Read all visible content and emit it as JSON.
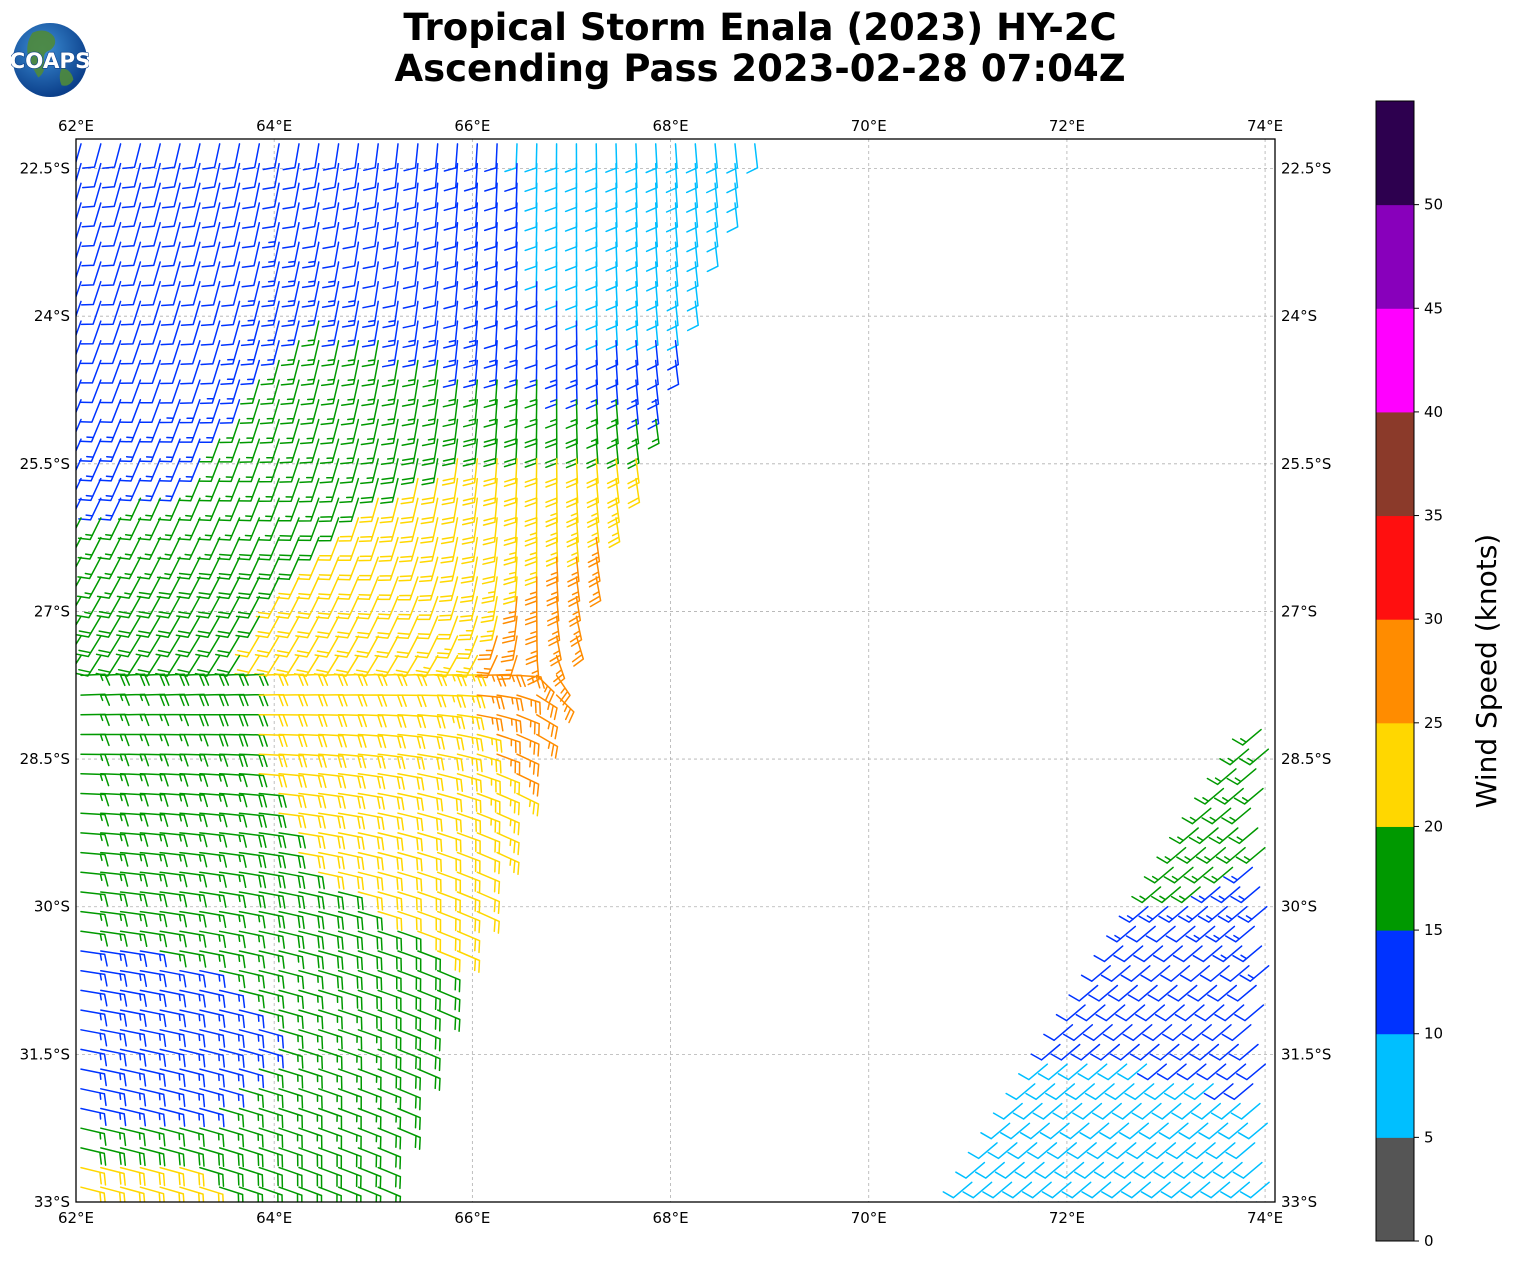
{
  "title": {
    "line1": "Tropical Storm Enala (2023) HY-2C",
    "line2": "Ascending Pass 2023-02-28 07:04Z"
  },
  "logo": {
    "text": "COAPS",
    "icon": "globe-logo-icon"
  },
  "chart_data": {
    "type": "wind-barb-map",
    "title": "Tropical Storm Enala (2023) HY-2C Ascending Pass 2023-02-28 07:04Z",
    "x_axis": {
      "range": [
        62.0,
        74.1
      ],
      "ticks": [
        62,
        64,
        66,
        68,
        70,
        72,
        74
      ],
      "tick_labels": [
        "62°E",
        "64°E",
        "66°E",
        "68°E",
        "70°E",
        "72°E",
        "74°E"
      ]
    },
    "y_axis": {
      "range": [
        -33.0,
        -22.2
      ],
      "ticks": [
        -22.5,
        -24,
        -25.5,
        -27,
        -28.5,
        -30,
        -31.5,
        -33
      ],
      "tick_labels": [
        "22.5°S",
        "24°S",
        "25.5°S",
        "27°S",
        "28.5°S",
        "30°S",
        "31.5°S",
        "33°S"
      ]
    },
    "grid": true,
    "colorbar": {
      "label": "Wind Speed (knots)",
      "bounds": [
        0,
        5,
        10,
        15,
        20,
        25,
        30,
        35,
        40,
        45,
        50,
        55
      ],
      "tick_labels": [
        "0",
        "5",
        "10",
        "15",
        "20",
        "25",
        "30",
        "35",
        "40",
        "45",
        "50"
      ],
      "colors": [
        "#555555",
        "#00bfff",
        "#0033ff",
        "#009900",
        "#ffd700",
        "#ff8c00",
        "#ff0f0f",
        "#8b3a2a",
        "#ff00ff",
        "#8800bb",
        "#2d004f"
      ]
    },
    "swaths": [
      {
        "name": "western swath",
        "direction_deg": 150,
        "core_center": [
          66.6,
          -27.6
        ],
        "speed_field": [
          {
            "region": "near 67E 27.5S",
            "speed_kt": 27
          },
          {
            "region": "near 65.5E 26.5S",
            "speed_kt": 22
          },
          {
            "region": "near 64.5E 28.5S",
            "speed_kt": 21
          },
          {
            "region": "near 63E 29S",
            "speed_kt": 17
          },
          {
            "region": "near 64.5E 25S",
            "speed_kt": 16
          },
          {
            "region": "near 63E 24S",
            "speed_kt": 12
          },
          {
            "region": "near 65.5E 23S",
            "speed_kt": 12
          },
          {
            "region": "near 67.5E 22.7S",
            "speed_kt": 8
          },
          {
            "region": "near 62.5E 31.7S",
            "speed_kt": 13
          },
          {
            "region": "near 62.5E 32.9S",
            "speed_kt": 21
          }
        ]
      },
      {
        "name": "eastern swath",
        "direction_deg": 230,
        "speed_field": [
          {
            "region": "near 73E 30.5S",
            "speed_kt": 12
          },
          {
            "region": "near 72.8E 29.6S",
            "speed_kt": 16
          },
          {
            "region": "near 73.9E 28.3S",
            "speed_kt": 16
          },
          {
            "region": "near 72.5E 32.5S",
            "speed_kt": 8
          }
        ]
      }
    ]
  }
}
